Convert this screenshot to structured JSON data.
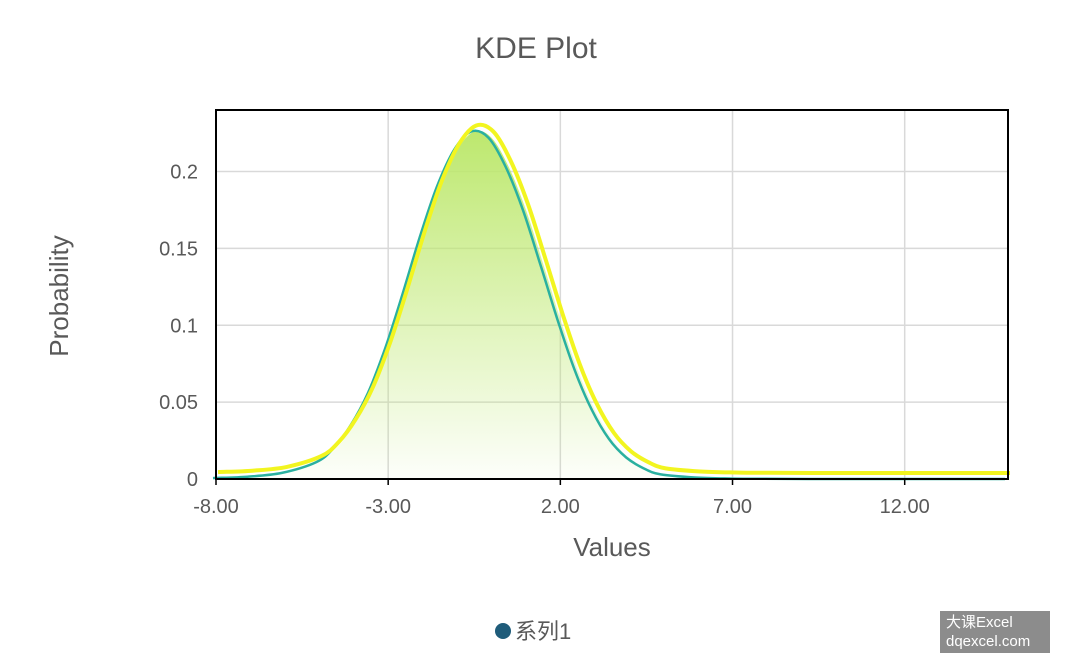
{
  "chart_data": {
    "type": "area",
    "title": "KDE Plot",
    "xlabel": "Values",
    "ylabel": "Probability",
    "xlim": [
      -8,
      15
    ],
    "ylim": [
      0,
      0.24
    ],
    "xticks": [
      -8,
      -3,
      2,
      7,
      12
    ],
    "xtick_labels": [
      "-8.00",
      "-3.00",
      "2.00",
      "7.00",
      "12.00"
    ],
    "yticks": [
      0,
      0.05,
      0.1,
      0.15,
      0.2
    ],
    "ytick_labels": [
      "0",
      "0.05",
      "0.1",
      "0.15",
      "0.2"
    ],
    "grid": true,
    "legend_position": "bottom",
    "series": [
      {
        "name": "系列1",
        "x": [
          -8,
          -7,
          -6,
          -5,
          -4.5,
          -4,
          -3.5,
          -3,
          -2.5,
          -2,
          -1.5,
          -1,
          -0.5,
          0,
          0.5,
          1,
          1.5,
          2,
          2.5,
          3,
          3.5,
          4,
          4.5,
          5,
          6,
          7,
          8,
          10,
          12,
          15
        ],
        "y": [
          0.0006,
          0.0015,
          0.004,
          0.011,
          0.02,
          0.035,
          0.056,
          0.085,
          0.12,
          0.157,
          0.19,
          0.214,
          0.226,
          0.222,
          0.203,
          0.175,
          0.14,
          0.104,
          0.071,
          0.045,
          0.026,
          0.014,
          0.007,
          0.003,
          0.001,
          0.0003,
          0.0001,
          0,
          0,
          0
        ]
      }
    ],
    "colors": {
      "line": "#2ab0a0",
      "highlight": "#f2f520",
      "fill_top": "#bde86e",
      "legend_marker": "#1f5c7a"
    }
  },
  "watermark": {
    "line1": "大课Excel",
    "line2": "dqexcel.com"
  }
}
